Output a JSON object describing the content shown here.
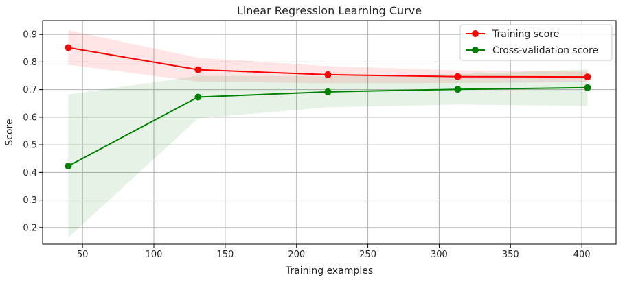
{
  "chart_data": {
    "type": "line",
    "title": "Linear Regression Learning Curve",
    "xlabel": "Training examples",
    "ylabel": "Score",
    "xlim": [
      22,
      424
    ],
    "ylim": [
      0.14,
      0.95
    ],
    "xticks": [
      50,
      100,
      150,
      200,
      250,
      300,
      350,
      400
    ],
    "yticks": [
      0.2,
      0.3,
      0.4,
      0.5,
      0.6,
      0.7,
      0.8,
      0.9
    ],
    "grid": true,
    "legend_position": "top-right",
    "x": [
      40,
      131,
      222,
      313,
      404
    ],
    "series": [
      {
        "name": "Training score",
        "color": "#ff0000",
        "band_color": "#ff0000",
        "values": [
          0.852,
          0.772,
          0.754,
          0.747,
          0.746
        ],
        "band_upper": [
          0.915,
          0.815,
          0.785,
          0.77,
          0.765
        ],
        "band_lower": [
          0.79,
          0.729,
          0.723,
          0.724,
          0.727
        ]
      },
      {
        "name": "Cross-validation score",
        "color": "#008000",
        "band_color": "#008000",
        "values": [
          0.423,
          0.673,
          0.692,
          0.701,
          0.707
        ],
        "band_upper": [
          0.682,
          0.75,
          0.748,
          0.756,
          0.773
        ],
        "band_lower": [
          0.164,
          0.596,
          0.636,
          0.646,
          0.641
        ]
      }
    ]
  }
}
